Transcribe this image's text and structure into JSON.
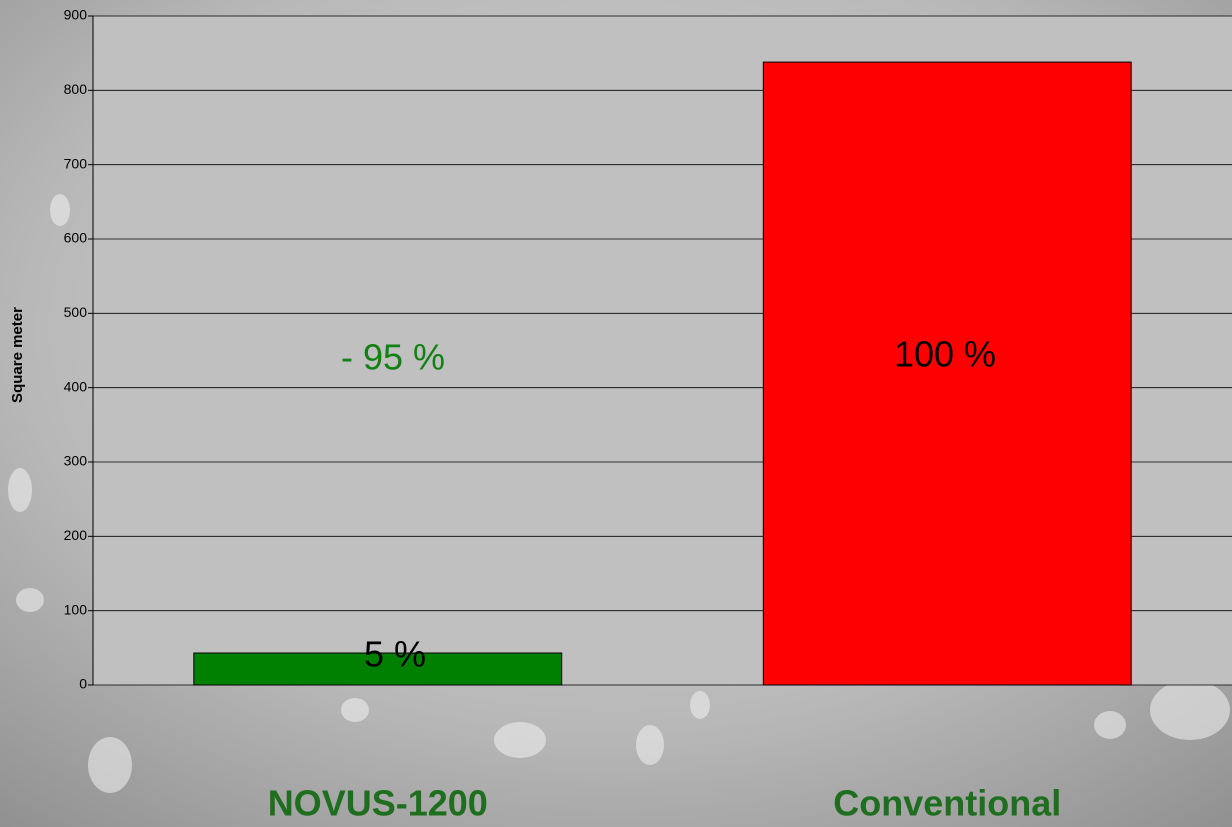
{
  "chart_data": {
    "type": "bar",
    "y_label": "Square meter",
    "categories": [
      "NOVUS-1200",
      "Conventional"
    ],
    "values": [
      43,
      838
    ],
    "colors": [
      "#008000",
      "#ff0000"
    ],
    "category_color": "#1f6e1f",
    "annotations": [
      {
        "text": "- 95 %",
        "color": "#138013"
      },
      {
        "text": "100 %",
        "color": "#000000"
      },
      {
        "text": "5 %",
        "color": "#000000"
      }
    ],
    "ylim": [
      0,
      900
    ],
    "yticks": [
      0,
      100,
      200,
      300,
      400,
      500,
      600,
      700,
      800,
      900
    ],
    "grid": true
  }
}
